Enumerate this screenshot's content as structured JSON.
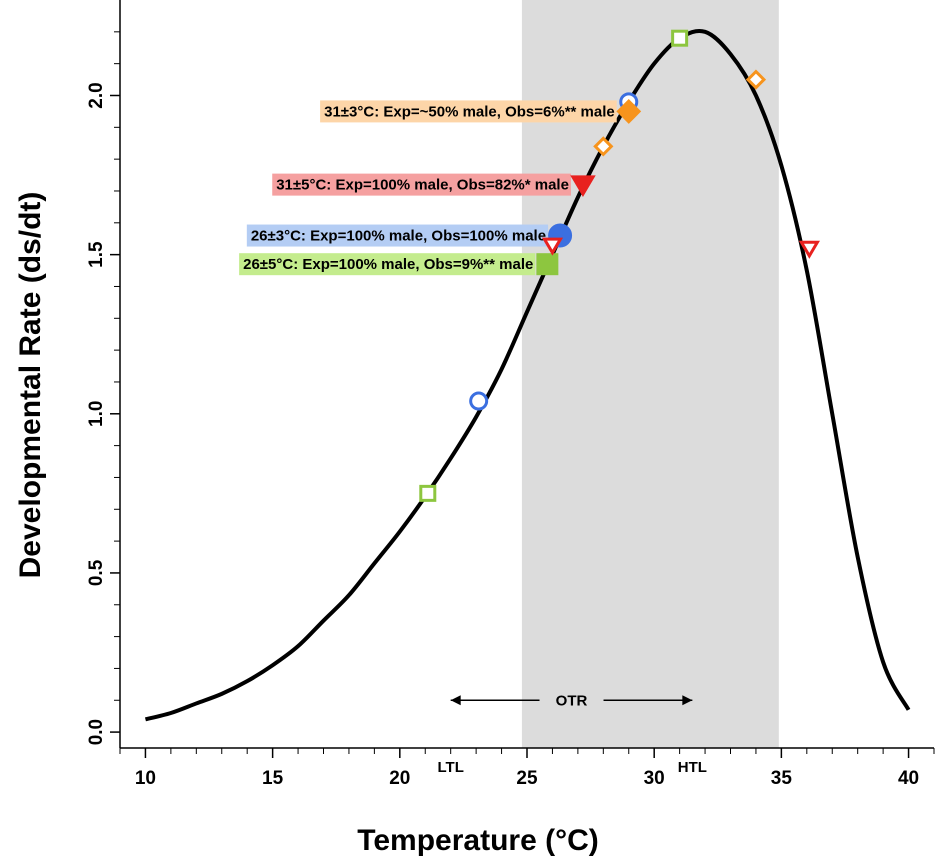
{
  "chart_data": {
    "type": "line",
    "xlabel": "Temperature (°C)",
    "ylabel": "Developmental Rate (ds/dt)",
    "xlim": [
      9,
      41
    ],
    "ylim": [
      -0.05,
      2.3
    ],
    "x_ticks": [
      10,
      15,
      20,
      25,
      30,
      35,
      40
    ],
    "x_tick_labels": [
      "10",
      "15",
      "20",
      "25",
      "30",
      "35",
      "40"
    ],
    "y_ticks": [
      0.0,
      0.5,
      1.0,
      1.5,
      2.0
    ],
    "y_tick_labels": [
      "0.0",
      "0.5",
      "1.0",
      "1.5",
      "2.0"
    ],
    "grid": false,
    "shaded_region": {
      "x": [
        24.8,
        34.9
      ],
      "label": "OTR",
      "color": "#dcdcdc"
    },
    "curve": {
      "x": [
        10,
        11,
        12,
        13,
        14,
        15,
        16,
        17,
        18,
        19,
        20,
        21,
        22,
        23,
        24,
        25,
        26,
        27,
        28,
        29,
        30,
        31,
        32,
        33,
        34,
        35,
        36,
        37,
        38,
        39,
        40
      ],
      "y": [
        0.04,
        0.06,
        0.09,
        0.12,
        0.16,
        0.21,
        0.27,
        0.35,
        0.43,
        0.53,
        0.63,
        0.74,
        0.86,
        0.99,
        1.14,
        1.32,
        1.5,
        1.68,
        1.84,
        1.98,
        2.1,
        2.18,
        2.2,
        2.13,
        2.0,
        1.78,
        1.45,
        1.0,
        0.55,
        0.22,
        0.07
      ]
    },
    "series": [
      {
        "name": "26±5°C: Exp=100% male, Obs=9%** male",
        "color": "#8dc63f",
        "marker": "square",
        "points": [
          {
            "x": 21.1,
            "y": 0.75,
            "filled": false
          },
          {
            "x": 31.0,
            "y": 2.18,
            "filled": false
          },
          {
            "x": 25.8,
            "y": 1.47,
            "filled": true
          }
        ]
      },
      {
        "name": "26±3°C: Exp=100% male, Obs=100% male",
        "color": "#3b6fe0",
        "marker": "circle",
        "points": [
          {
            "x": 23.1,
            "y": 1.04,
            "filled": false
          },
          {
            "x": 29.0,
            "y": 1.98,
            "filled": false
          },
          {
            "x": 26.3,
            "y": 1.56,
            "filled": true
          }
        ]
      },
      {
        "name": "31±5°C: Exp=100% male, Obs=82%* male",
        "color": "#e8211f",
        "marker": "triangle-down",
        "points": [
          {
            "x": 26.0,
            "y": 1.53,
            "filled": false
          },
          {
            "x": 36.1,
            "y": 1.52,
            "filled": false
          },
          {
            "x": 27.2,
            "y": 1.72,
            "filled": true
          }
        ]
      },
      {
        "name": "31±3°C: Exp=~50% male, Obs=6%** male",
        "color": "#f7941d",
        "marker": "diamond",
        "points": [
          {
            "x": 28.0,
            "y": 1.84,
            "filled": false
          },
          {
            "x": 34.0,
            "y": 2.05,
            "filled": false
          },
          {
            "x": 29.0,
            "y": 1.95,
            "filled": true
          }
        ]
      }
    ],
    "annotations": [
      {
        "text": "31±3°C: Exp=~50% male, Obs=6%** male",
        "bg": "#fdd5a8",
        "anchor": "left-of-point",
        "x": 29.0,
        "y": 1.95
      },
      {
        "text": "31±5°C: Exp=100% male, Obs=82%* male",
        "bg": "#f5a0a0",
        "anchor": "left-of-point",
        "x": 27.2,
        "y": 1.72
      },
      {
        "text": "26±3°C: Exp=100% male, Obs=100% male",
        "bg": "#b4cdf4",
        "anchor": "left-of-point",
        "x": 26.3,
        "y": 1.56
      },
      {
        "text": "26±5°C: Exp=100% male, Obs=9%** male",
        "bg": "#c4ec8d",
        "anchor": "left-of-point",
        "x": 25.8,
        "y": 1.47
      }
    ],
    "otr_arrow": {
      "label": "OTR",
      "x_from": 22.0,
      "x_to": 31.5,
      "y": 0.1
    },
    "threshold_labels": [
      {
        "text": "LTL",
        "x": 22.0
      },
      {
        "text": "HTL",
        "x": 31.5
      }
    ]
  }
}
